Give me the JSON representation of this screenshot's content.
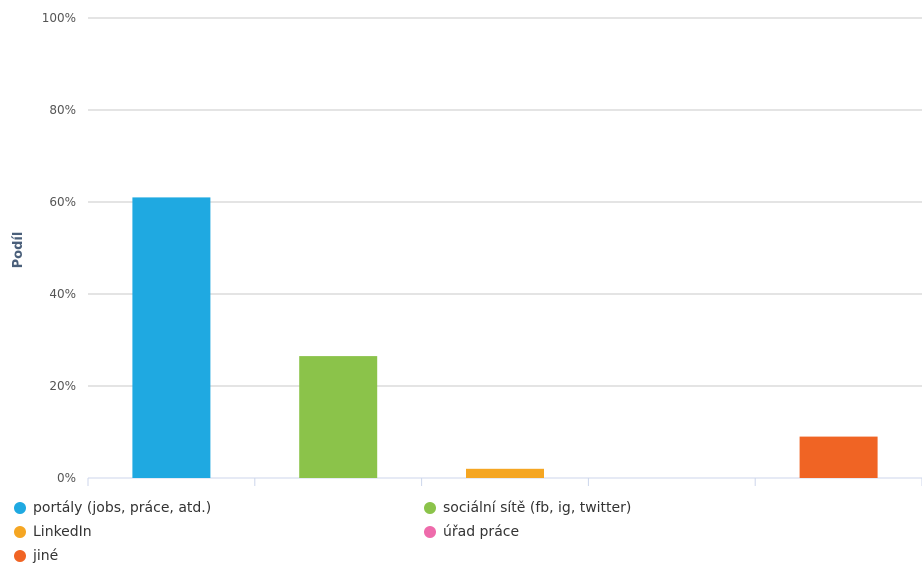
{
  "chart_data": {
    "type": "bar",
    "categories": [
      "portály (jobs, práce, atd.)",
      "sociální sítě (fb, ig, twitter)",
      "LinkedIn",
      "úřad práce",
      "jiné"
    ],
    "values": [
      61,
      26.5,
      2,
      0,
      9
    ],
    "colors": [
      "#1fa9e1",
      "#8bc34a",
      "#f5a623",
      "#ee6bab",
      "#f06424"
    ],
    "ylabel": "Podíl",
    "ylim": [
      0,
      100
    ],
    "yticks": [
      "0%",
      "20%",
      "40%",
      "60%",
      "80%",
      "100%"
    ],
    "grid": true,
    "legend_position": "bottom"
  }
}
